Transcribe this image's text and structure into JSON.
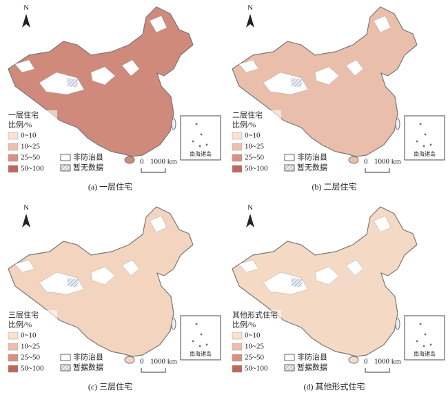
{
  "class_colors": [
    "#f7e3d3",
    "#ecbfae",
    "#d9907f",
    "#c0675d"
  ],
  "panels": [
    {
      "legend_title": "一层住宅",
      "unit": "比例/%",
      "classes": [
        "0~10",
        "10~25",
        "25~50",
        "50~100"
      ],
      "map_color": "#cf8a7c",
      "non_prevention": "非防治县",
      "no_data": "暂无数据",
      "scale_zero": "0",
      "scale_len": "1000 km",
      "inset": "南海诸岛",
      "north": "N",
      "caption": "(a) 一层住宅"
    },
    {
      "legend_title": "二层住宅",
      "unit": "比例/%",
      "classes": [
        "0~10",
        "10~25",
        "25~50",
        "50~100"
      ],
      "map_color": "#e9bfac",
      "non_prevention": "非防治县",
      "no_data": "暂无数据",
      "scale_zero": "0",
      "scale_len": "1000 km",
      "inset": "南海诸岛",
      "north": "N",
      "caption": "(b) 二层住宅"
    },
    {
      "legend_title": "三层住宅",
      "unit": "比例/%",
      "classes": [
        "0~10",
        "10~25",
        "25~50",
        "50~100"
      ],
      "map_color": "#f2d4bf",
      "non_prevention": "非防治县",
      "no_data": "暂据数据",
      "scale_zero": "0",
      "scale_len": "1000 km",
      "inset": "南海诸岛",
      "north": "N",
      "caption": "(c) 三层住宅"
    },
    {
      "legend_title": "其他形式住宅",
      "unit": "比例/%",
      "classes": [
        "0~10",
        "10~25",
        "25~50",
        "50~100"
      ],
      "map_color": "#f4d9c5",
      "non_prevention": "非防治县",
      "no_data": "暂据数据",
      "scale_zero": "0",
      "scale_len": "1000 km",
      "inset": "南海诸岛",
      "north": "N",
      "caption": "(d) 其他形式住宅"
    }
  ]
}
